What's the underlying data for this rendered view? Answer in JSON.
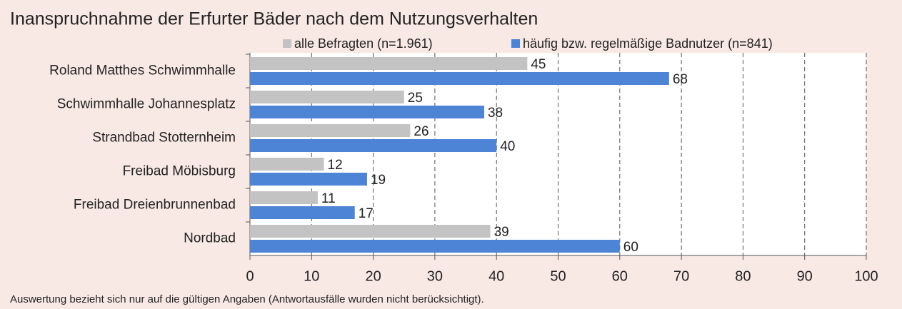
{
  "chart_data": {
    "type": "hbar",
    "title": "Inanspruchnahme der Erfurter Bäder nach dem Nutzungsverhalten",
    "categories": [
      "Roland Matthes Schwimmhalle",
      "Schwimmhalle Johannesplatz",
      "Strandbad Stotternheim",
      "Freibad Möbisburg",
      "Freibad Dreienbrunnenbad",
      "Nordbad"
    ],
    "series": [
      {
        "name": "alle Befragten (n=1.961)",
        "color": "#c3c3c3",
        "values": [
          45,
          25,
          26,
          12,
          11,
          39
        ]
      },
      {
        "name": "häufig bzw. regelmäßige Badnutzer (n=841)",
        "color": "#4d84d6",
        "values": [
          68,
          38,
          40,
          19,
          17,
          60
        ]
      }
    ],
    "xlim": [
      0,
      100
    ],
    "xticks": [
      0,
      10,
      20,
      30,
      40,
      50,
      60,
      70,
      80,
      90,
      100
    ],
    "grid": true,
    "footnote": "Auswertung bezieht sich nur auf die gültigen Angaben (Antwortausfälle wurden nicht berücksichtigt)."
  }
}
